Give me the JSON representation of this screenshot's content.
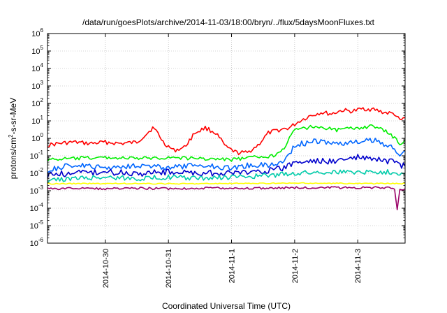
{
  "chart_data": {
    "type": "line",
    "title": "/data/run/goesPlots/archive/2014-11-03/18:00/bryn/../flux/5daysMoonFluxes.txt",
    "xlabel": "Coordinated Universal Time (UTC)",
    "ylabel_parts": [
      "protons/cm",
      "2",
      "-s-sr-MeV"
    ],
    "y_scale": "log",
    "ylim": [
      1e-06,
      1000000.0
    ],
    "y_ticks": [
      {
        "base": "10",
        "exp": "-6"
      },
      {
        "base": "10",
        "exp": "-5"
      },
      {
        "base": "10",
        "exp": "-4"
      },
      {
        "base": "10",
        "exp": "-3"
      },
      {
        "base": "10",
        "exp": "-2"
      },
      {
        "base": "10",
        "exp": "-1"
      },
      {
        "base": "10",
        "exp": "0"
      },
      {
        "base": "10",
        "exp": "1"
      },
      {
        "base": "10",
        "exp": "2"
      },
      {
        "base": "10",
        "exp": "3"
      },
      {
        "base": "10",
        "exp": "4"
      },
      {
        "base": "10",
        "exp": "5"
      },
      {
        "base": "10",
        "exp": "6"
      }
    ],
    "x_ticks": [
      "2014-10-30",
      "2014-10-31",
      "2014-11-1",
      "2014-11-2",
      "2014-11-3"
    ],
    "xlim": [
      "2014-10-29 02:00",
      "2014-11-03 18:00"
    ],
    "grid": true,
    "series": [
      {
        "color": "#ff0000",
        "x": [
          "2014-10-29 02:00",
          "2014-10-29 06:00",
          "2014-10-29 12:00",
          "2014-10-29 18:00",
          "2014-10-30 00:00",
          "2014-10-30 06:00",
          "2014-10-30 12:00",
          "2014-10-30 16:00",
          "2014-10-30 18:00",
          "2014-10-30 20:00",
          "2014-10-30 22:00",
          "2014-10-31 02:00",
          "2014-10-31 06:00",
          "2014-10-31 10:00",
          "2014-10-31 14:00",
          "2014-10-31 18:00",
          "2014-10-31 22:00",
          "2014-11-01 02:00",
          "2014-11-01 06:00",
          "2014-11-01 10:00",
          "2014-11-01 14:00",
          "2014-11-01 18:00",
          "2014-11-01 22:00",
          "2014-11-02 02:00",
          "2014-11-02 06:00",
          "2014-11-02 10:00",
          "2014-11-02 14:00",
          "2014-11-02 18:00",
          "2014-11-02 22:00",
          "2014-11-03 02:00",
          "2014-11-03 06:00",
          "2014-11-03 10:00",
          "2014-11-03 14:00",
          "2014-11-03 16:00",
          "2014-11-03 18:00"
        ],
        "y": [
          0.4,
          0.5,
          0.6,
          0.5,
          0.6,
          0.5,
          0.6,
          2.0,
          4.0,
          2.0,
          0.6,
          0.2,
          0.3,
          2.0,
          4.0,
          2.0,
          0.3,
          0.15,
          0.15,
          0.4,
          2.0,
          3.0,
          4.0,
          10,
          20,
          30,
          25,
          40,
          35,
          50,
          45,
          30,
          25,
          10,
          15
        ]
      },
      {
        "color": "#00ee00",
        "x": [
          "2014-10-29 02:00",
          "2014-10-29 12:00",
          "2014-10-30 00:00",
          "2014-10-30 12:00",
          "2014-10-31 00:00",
          "2014-10-31 12:00",
          "2014-11-01 00:00",
          "2014-11-01 08:00",
          "2014-11-01 16:00",
          "2014-11-01 20:00",
          "2014-11-02 00:00",
          "2014-11-02 08:00",
          "2014-11-02 16:00",
          "2014-11-03 00:00",
          "2014-11-03 06:00",
          "2014-11-03 12:00",
          "2014-11-03 16:00",
          "2014-11-03 18:00"
        ],
        "y": [
          0.06,
          0.07,
          0.08,
          0.07,
          0.08,
          0.07,
          0.06,
          0.08,
          0.1,
          0.3,
          3.0,
          5.0,
          3.0,
          4.0,
          5.0,
          2.0,
          0.5,
          0.8
        ]
      },
      {
        "color": "#0066ff",
        "x": [
          "2014-10-29 02:00",
          "2014-10-29 12:00",
          "2014-10-30 00:00",
          "2014-10-30 12:00",
          "2014-10-31 00:00",
          "2014-10-31 12:00",
          "2014-11-01 00:00",
          "2014-11-01 08:00",
          "2014-11-01 16:00",
          "2014-11-01 20:00",
          "2014-11-02 00:00",
          "2014-11-02 08:00",
          "2014-11-02 16:00",
          "2014-11-03 00:00",
          "2014-11-03 06:00",
          "2014-11-03 12:00",
          "2014-11-03 16:00",
          "2014-11-03 18:00"
        ],
        "y": [
          0.015,
          0.03,
          0.02,
          0.03,
          0.02,
          0.03,
          0.02,
          0.03,
          0.03,
          0.05,
          0.4,
          0.7,
          0.5,
          0.6,
          0.8,
          0.4,
          0.1,
          0.2
        ]
      },
      {
        "color": "#0000cc",
        "x": [
          "2014-10-29 02:00",
          "2014-10-29 12:00",
          "2014-10-30 00:00",
          "2014-10-30 12:00",
          "2014-10-31 00:00",
          "2014-10-31 12:00",
          "2014-11-01 00:00",
          "2014-11-01 08:00",
          "2014-11-01 16:00",
          "2014-11-01 20:00",
          "2014-11-02 00:00",
          "2014-11-02 08:00",
          "2014-11-02 16:00",
          "2014-11-03 00:00",
          "2014-11-03 06:00",
          "2014-11-03 12:00",
          "2014-11-03 16:00",
          "2014-11-03 18:00"
        ],
        "y": [
          0.008,
          0.01,
          0.012,
          0.01,
          0.012,
          0.01,
          0.01,
          0.012,
          0.015,
          0.02,
          0.04,
          0.05,
          0.05,
          0.08,
          0.06,
          0.05,
          0.03,
          0.025
        ]
      },
      {
        "color": "#00ccaa",
        "x": [
          "2014-10-29 02:00",
          "2014-10-29 12:00",
          "2014-10-30 00:00",
          "2014-10-30 12:00",
          "2014-10-31 00:00",
          "2014-10-31 12:00",
          "2014-11-01 00:00",
          "2014-11-01 12:00",
          "2014-11-02 00:00",
          "2014-11-02 12:00",
          "2014-11-03 00:00",
          "2014-11-03 12:00",
          "2014-11-03 18:00"
        ],
        "y": [
          0.004,
          0.005,
          0.006,
          0.005,
          0.006,
          0.005,
          0.006,
          0.007,
          0.01,
          0.012,
          0.012,
          0.012,
          0.01
        ]
      },
      {
        "color": "#ffff00",
        "x": [
          "2014-10-29 02:00",
          "2014-10-30 00:00",
          "2014-10-31 00:00",
          "2014-11-01 00:00",
          "2014-11-02 00:00",
          "2014-11-03 00:00",
          "2014-11-03 18:00"
        ],
        "y": [
          0.0025,
          0.0026,
          0.0025,
          0.0026,
          0.0027,
          0.0026,
          0.0026
        ]
      },
      {
        "color": "#990066",
        "x": [
          "2014-10-29 02:00",
          "2014-10-29 12:00",
          "2014-10-30 00:00",
          "2014-10-30 12:00",
          "2014-10-31 00:00",
          "2014-10-31 12:00",
          "2014-11-01 00:00",
          "2014-11-01 12:00",
          "2014-11-02 00:00",
          "2014-11-02 12:00",
          "2014-11-03 00:00",
          "2014-11-03 12:00",
          "2014-11-03 14:00",
          "2014-11-03 15:00",
          "2014-11-03 16:00",
          "2014-11-03 18:00"
        ],
        "y": [
          0.0013,
          0.0014,
          0.0013,
          0.0014,
          0.0013,
          0.0014,
          0.0014,
          0.0014,
          0.0015,
          0.0015,
          0.0015,
          0.0015,
          0.0014,
          8e-05,
          0.0012,
          0.0013
        ]
      }
    ]
  }
}
